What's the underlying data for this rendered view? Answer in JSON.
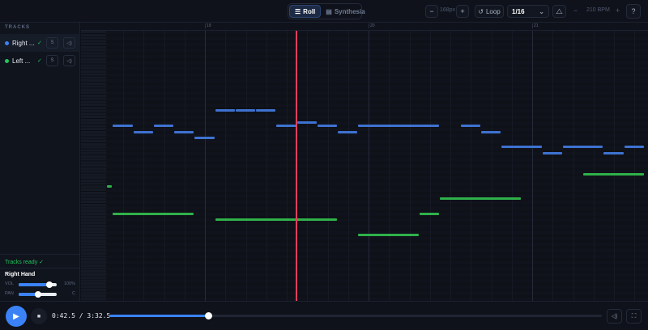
{
  "toolbar": {
    "view_modes": [
      {
        "label": "Roll",
        "icon": "list-icon",
        "active": true
      },
      {
        "label": "Synthesia",
        "icon": "piano-icon",
        "active": false
      }
    ],
    "zoom_minus": "−",
    "zoom_value": "168px",
    "zoom_plus": "+",
    "loop_label": "Loop",
    "loop_icon": "loop-icon",
    "snap_value": "1/16",
    "metronome_icon": "metronome-icon",
    "bpm_minus": "−",
    "bpm_value": "210 BPM",
    "bpm_plus": "+",
    "help_icon": "help-icon"
  },
  "sidebar": {
    "title": "TRACKS",
    "tracks": [
      {
        "name": "Right ...",
        "color": "#3b82f6",
        "check": "✓",
        "solo": "S",
        "mute_icon": "speaker-icon"
      },
      {
        "name": "Left ...",
        "color": "#22c55e",
        "check": "✓",
        "solo": "S",
        "mute_icon": "speaker-icon"
      }
    ],
    "status": "Tracks ready ✓",
    "selected_track": "Right Hand",
    "vol_label": "VOL",
    "vol_value": "100%",
    "vol_level": 0.8,
    "pan_label": "PAN",
    "pan_value": "C",
    "pan_level": 0.5
  },
  "ruler": {
    "bars": [
      "19",
      "20",
      "21"
    ]
  },
  "colors": {
    "right_hand": "#3e72d1",
    "left_hand": "#2fb14a",
    "playhead": "#e0405c",
    "accent": "#3b82f6"
  },
  "notes": {
    "right": [
      [
        -4.5,
        1,
        72
      ],
      [
        -3.5,
        1,
        70
      ],
      [
        -2.5,
        1,
        72
      ],
      [
        -1.5,
        1,
        70
      ],
      [
        -0.5,
        1,
        68
      ],
      [
        0.5,
        1,
        77
      ],
      [
        1.5,
        1,
        77
      ],
      [
        2.5,
        1,
        77
      ],
      [
        3.5,
        1,
        72
      ],
      [
        4.5,
        1,
        73
      ],
      [
        5.5,
        1,
        72
      ],
      [
        6.5,
        1,
        70
      ],
      [
        7.5,
        4,
        72
      ],
      [
        12.5,
        1,
        72
      ],
      [
        13.5,
        1,
        70
      ],
      [
        14.5,
        2,
        65
      ],
      [
        16.5,
        1,
        63
      ],
      [
        17.5,
        2,
        65
      ],
      [
        19.5,
        1,
        63
      ],
      [
        20.5,
        1,
        65
      ]
    ],
    "left": [
      [
        -4.8,
        0.3,
        52
      ],
      [
        -4.5,
        4,
        43
      ],
      [
        0.5,
        6,
        41
      ],
      [
        7.5,
        3,
        36
      ],
      [
        10.5,
        1,
        43
      ],
      [
        11.5,
        4,
        48
      ],
      [
        18.5,
        3,
        56
      ]
    ]
  },
  "transport": {
    "play_icon": "play-icon",
    "stop_icon": "stop-icon",
    "time_current": "0:42.5",
    "time_sep": "/",
    "time_total": "3:32.5",
    "progress": 0.2,
    "volume_icon": "speaker-icon",
    "fullscreen_icon": "fullscreen-icon"
  }
}
